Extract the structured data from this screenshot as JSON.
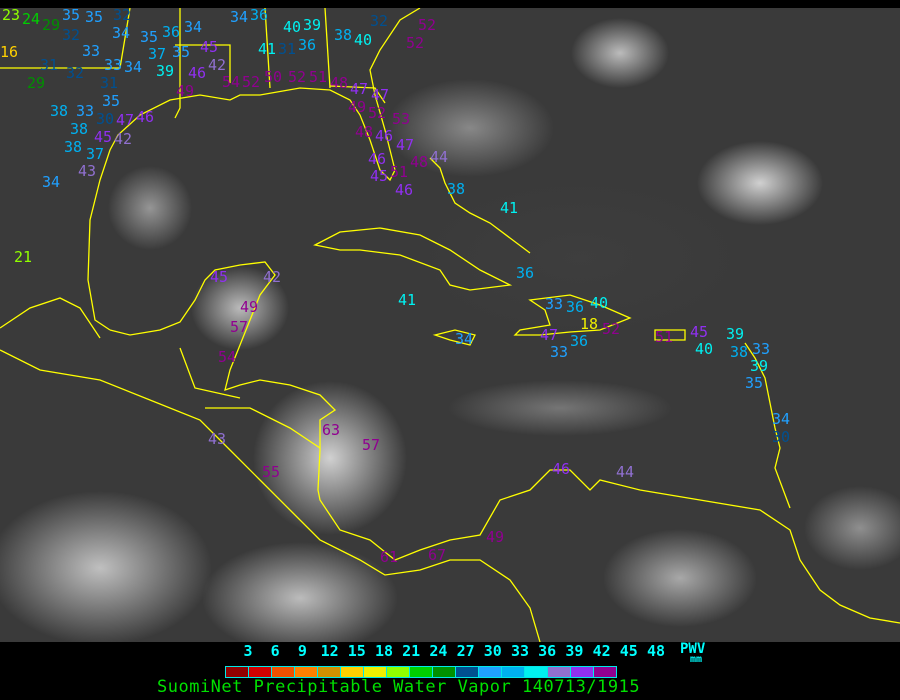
{
  "title": "SuomiNet Precipitable Water Vapor 140713/1915",
  "legend": {
    "quantity": "PWV",
    "unit": "mm",
    "ticks": [
      "3",
      "6",
      "9",
      "12",
      "15",
      "18",
      "21",
      "24",
      "27",
      "30",
      "33",
      "36",
      "39",
      "42",
      "45",
      "48"
    ],
    "colors": [
      "#900000",
      "#d00000",
      "#f05000",
      "#ff8000",
      "#d09000",
      "#ffd000",
      "#f0f000",
      "#90ff00",
      "#00d000",
      "#009000",
      "#005090",
      "#20a0ff",
      "#00b0f0",
      "#00f0f0",
      "#9070d0",
      "#9030f0",
      "#900090"
    ]
  },
  "map": {
    "background": "GOES infrared/visible satellite imagery, grayscale",
    "coastline_color": "#ffff00"
  },
  "stations": [
    "23",
    "24",
    "29",
    "16",
    "35",
    "35",
    "32",
    "32",
    "33",
    "31",
    "32",
    "29",
    "33",
    "34",
    "31",
    "35",
    "38",
    "33",
    "30",
    "38",
    "45",
    "47",
    "46",
    "38",
    "37",
    "42",
    "43",
    "34",
    "34",
    "35",
    "36",
    "37",
    "35",
    "34",
    "45",
    "42",
    "39",
    "46",
    "49",
    "54",
    "52",
    "34",
    "36",
    "40",
    "39",
    "41",
    "31",
    "36",
    "38",
    "40",
    "32",
    "52",
    "52",
    "50",
    "52",
    "51",
    "48",
    "47",
    "49",
    "47",
    "52",
    "53",
    "48",
    "46",
    "47",
    "46",
    "45",
    "51",
    "48",
    "46",
    "44",
    "38",
    "41",
    "36",
    "21",
    "45",
    "42",
    "41",
    "49",
    "57",
    "54",
    "33",
    "36",
    "40",
    "18",
    "52",
    "47",
    "36",
    "33",
    "34",
    "51",
    "45",
    "40",
    "39",
    "38",
    "33",
    "39",
    "35",
    "34",
    "30",
    "43",
    "63",
    "57",
    "55",
    "46",
    "44",
    "61",
    "67",
    "49"
  ]
}
